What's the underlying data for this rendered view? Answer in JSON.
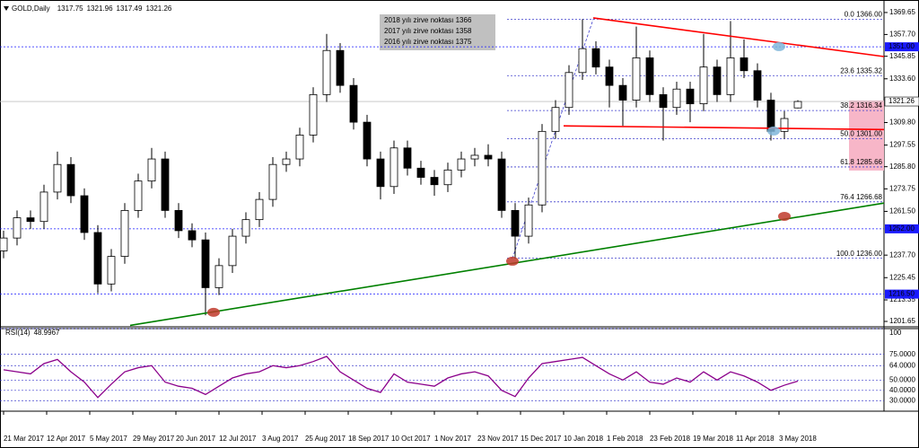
{
  "chart_data": {
    "type": "candlestick",
    "title": "GOLD,Daily",
    "x": [
      0,
      5,
      10,
      15,
      20,
      25,
      30,
      35,
      40,
      45,
      50,
      55,
      60,
      65,
      70,
      75,
      80,
      85,
      90,
      95,
      100,
      105,
      110,
      115,
      120,
      125,
      130,
      135,
      140,
      145,
      150,
      155,
      160,
      165,
      170,
      175,
      180,
      185,
      190,
      195,
      200,
      205,
      210,
      215,
      220,
      225,
      230,
      235,
      240,
      245,
      250,
      255,
      260,
      265,
      270,
      275,
      280,
      285,
      290,
      295
    ],
    "open": [
      1240,
      1247,
      1258,
      1256,
      1272,
      1287,
      1270,
      1250,
      1222,
      1237,
      1262,
      1278,
      1290,
      1262,
      1251,
      1246,
      1220,
      1232,
      1248,
      1257,
      1268,
      1287,
      1290,
      1303,
      1325,
      1349,
      1330,
      1310,
      1290,
      1275,
      1296,
      1285,
      1280,
      1276,
      1284,
      1290,
      1292,
      1290,
      1262,
      1248,
      1265,
      1305,
      1318,
      1337,
      1350,
      1340,
      1330,
      1322,
      1345,
      1325,
      1318,
      1328,
      1320,
      1340,
      1325,
      1345,
      1338,
      1322,
      1305,
      1317.75
    ],
    "high": [
      1251,
      1262,
      1262,
      1276,
      1294,
      1291,
      1274,
      1254,
      1241,
      1266,
      1282,
      1296,
      1294,
      1266,
      1255,
      1250,
      1236,
      1252,
      1261,
      1272,
      1291,
      1294,
      1307,
      1329,
      1358,
      1353,
      1334,
      1314,
      1294,
      1300,
      1300,
      1289,
      1284,
      1288,
      1294,
      1296,
      1298,
      1294,
      1266,
      1269,
      1309,
      1322,
      1341,
      1366,
      1354,
      1344,
      1334,
      1362,
      1349,
      1329,
      1332,
      1332,
      1358,
      1344,
      1365,
      1355,
      1342,
      1326,
      1316,
      1321.96
    ],
    "low": [
      1236,
      1243,
      1252,
      1252,
      1268,
      1266,
      1246,
      1217,
      1218,
      1233,
      1258,
      1274,
      1258,
      1247,
      1242,
      1205,
      1216,
      1228,
      1244,
      1253,
      1264,
      1283,
      1286,
      1299,
      1321,
      1326,
      1306,
      1286,
      1268,
      1271,
      1281,
      1276,
      1270,
      1272,
      1280,
      1286,
      1286,
      1258,
      1236,
      1244,
      1261,
      1301,
      1314,
      1333,
      1336,
      1318,
      1308,
      1318,
      1321,
      1300,
      1314,
      1310,
      1316,
      1321,
      1321,
      1334,
      1318,
      1300,
      1301,
      1317.49
    ],
    "close": [
      1247,
      1258,
      1256,
      1272,
      1287,
      1270,
      1250,
      1222,
      1237,
      1262,
      1278,
      1290,
      1262,
      1251,
      1246,
      1220,
      1232,
      1248,
      1257,
      1268,
      1287,
      1290,
      1303,
      1325,
      1349,
      1330,
      1310,
      1290,
      1275,
      1296,
      1285,
      1280,
      1276,
      1284,
      1290,
      1292,
      1290,
      1262,
      1248,
      1265,
      1305,
      1318,
      1337,
      1350,
      1340,
      1330,
      1322,
      1345,
      1325,
      1318,
      1328,
      1320,
      1340,
      1325,
      1345,
      1338,
      1322,
      1305,
      1312,
      1321.26
    ],
    "up_color": "#ffffff",
    "down_color": "#000000",
    "xlim": [
      -1.33,
      327
    ],
    "xticks": [
      {
        "value": 0,
        "label": "21 Mar 2017"
      },
      {
        "value": 16,
        "label": "12 Apr 2017"
      },
      {
        "value": 32,
        "label": "5 May 2017"
      },
      {
        "value": 48,
        "label": "29 May 2017"
      },
      {
        "value": 64,
        "label": "20 Jun 2017"
      },
      {
        "value": 80,
        "label": "12 Jul 2017"
      },
      {
        "value": 96,
        "label": "3 Aug 2017"
      },
      {
        "value": 112,
        "label": "25 Aug 2017"
      },
      {
        "value": 128,
        "label": "18 Sep 2017"
      },
      {
        "value": 144,
        "label": "10 Oct 2017"
      },
      {
        "value": 160,
        "label": "1 Nov 2017"
      },
      {
        "value": 176,
        "label": "23 Nov 2017"
      },
      {
        "value": 192,
        "label": "15 Dec 2017"
      },
      {
        "value": 208,
        "label": "10 Jan 2018"
      },
      {
        "value": 224,
        "label": "1 Feb 2018"
      },
      {
        "value": 240,
        "label": "23 Feb 2018"
      },
      {
        "value": 256,
        "label": "19 Mar 2018"
      },
      {
        "value": 272,
        "label": "11 Apr 2018"
      },
      {
        "value": 288,
        "label": "3 May 2018"
      }
    ],
    "ylim": [
      1199.7,
      1374.5
    ],
    "yticks": [
      {
        "value": 1369.65,
        "label": "1369.65"
      },
      {
        "value": 1357.7,
        "label": "1357.70"
      },
      {
        "value": 1345.85,
        "label": "1345.85"
      },
      {
        "value": 1333.6,
        "label": "1333.60"
      },
      {
        "value": 1309.8,
        "label": "1309.80"
      },
      {
        "value": 1297.55,
        "label": "1297.55"
      },
      {
        "value": 1285.8,
        "label": "1285.80"
      },
      {
        "value": 1273.75,
        "label": "1273.75"
      },
      {
        "value": 1261.5,
        "label": "1261.50"
      },
      {
        "value": 1237.7,
        "label": "1237.70"
      },
      {
        "value": 1225.45,
        "label": "1225.45"
      },
      {
        "value": 1213.35,
        "label": "1213.35"
      },
      {
        "value": 1201.65,
        "label": "1201.65"
      }
    ],
    "levels": [
      {
        "value": 1351,
        "label": "1351.00"
      },
      {
        "value": 1252,
        "label": "1252.00"
      },
      {
        "value": 1216.5,
        "label": "1216.50"
      }
    ],
    "level_color": "#1a1aff",
    "fib": {
      "color": "#3d3dcc",
      "from": [
        189,
        1236
      ],
      "to": [
        219,
        1366
      ],
      "levels": [
        {
          "value": 1366,
          "label": "0.0 1366.00"
        },
        {
          "value": 1335.32,
          "label": "23.6 1335.32"
        },
        {
          "value": 1316.34,
          "label": "38.2 1316.34"
        },
        {
          "value": 1301,
          "label": "50.0 1301.00"
        },
        {
          "value": 1285.66,
          "label": "61.8 1285.66"
        },
        {
          "value": 1266.68,
          "label": "76.4 1266.68"
        },
        {
          "value": 1236,
          "label": "100.0 1236.00"
        }
      ]
    },
    "trendlines": [
      {
        "color": "#ff0000",
        "from": [
          219,
          1366.7
        ],
        "to": [
          327,
          1345.7
        ]
      },
      {
        "color": "#ff0000",
        "from": [
          208,
          1308
        ],
        "to": [
          327,
          1306
        ]
      },
      {
        "color": "#008000",
        "from": [
          47,
          1199.5
        ],
        "to": [
          327,
          1266
        ]
      }
    ],
    "zone": {
      "color": "#f7b6c8",
      "from_x": 314,
      "from": 1321.8,
      "to": 1283.7
    },
    "markers": [
      {
        "color": "#c0392b",
        "x": 78,
        "value": 1206.6
      },
      {
        "color": "#c0392b",
        "x": 189,
        "value": 1234.4
      },
      {
        "color": "#c0392b",
        "x": 290,
        "value": 1258.8
      },
      {
        "color": "#7fb6d9",
        "x": 288,
        "value": 1351.1
      },
      {
        "color": "#7fb6d9",
        "x": 286,
        "value": 1305.2
      }
    ],
    "annotations": [
      "2018 yılı zirve  noktası 1366",
      "2017 yılı zirve  noktası 1358",
      "2016 yılı zirve  noktası 1375"
    ],
    "rsi": {
      "label": "RSI(14)",
      "color": "#8b008b",
      "values": [
        60,
        58,
        56,
        66,
        70,
        58,
        48,
        33,
        46,
        58,
        62,
        64,
        48,
        44,
        42,
        36,
        44,
        52,
        56,
        58,
        64,
        62,
        64,
        68,
        73,
        58,
        50,
        42,
        38,
        56,
        48,
        46,
        44,
        52,
        56,
        58,
        54,
        40,
        34,
        52,
        66,
        68,
        70,
        72,
        64,
        56,
        50,
        58,
        48,
        46,
        52,
        48,
        58,
        50,
        58,
        54,
        48,
        40,
        45,
        48.9967
      ],
      "ylim": [
        21.5,
        100
      ],
      "yticks": [
        {
          "value": 100,
          "label": "100"
        },
        {
          "value": 75,
          "label": "75.0000"
        },
        {
          "value": 64,
          "label": "64.0000"
        },
        {
          "value": 50,
          "label": "50.0000"
        },
        {
          "value": 40,
          "label": "40.0000"
        },
        {
          "value": 30,
          "label": "30.0000"
        }
      ]
    }
  }
}
